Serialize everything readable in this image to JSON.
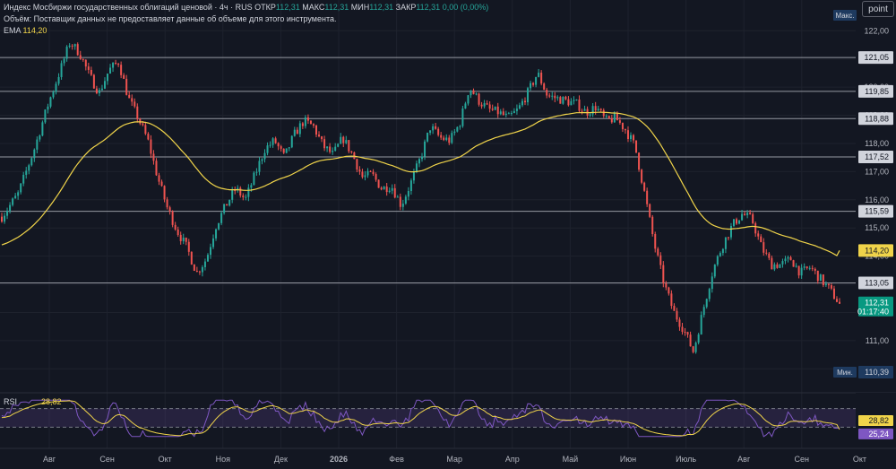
{
  "legend": {
    "title": "Индекс Мосбиржи государственных облигаций ценовой · 4ч · RUS",
    "open_label": "ОТКР",
    "open_value": "112,31",
    "high_label": "МАКС",
    "high_value": "112,31",
    "low_label": "МИН",
    "low_value": "112,31",
    "close_label": "ЗАКР",
    "close_value": "112,31",
    "change": "0,00 (0,00%)",
    "volume_note": "Объём: Поставщик данных не предоставляет данные об объеме для этого инструмента.",
    "ema_label": "EMA",
    "ema_value": "114,20"
  },
  "toolbar": {
    "point_label": "point"
  },
  "colors": {
    "up": "#26a69a",
    "down": "#ef5350",
    "ema": "#f0d44a",
    "rsi": "#7e57c2",
    "rsi_ma": "#f0d44a",
    "hline": "#9598a1",
    "bg": "#131722"
  },
  "chart_data": {
    "type": "candlestick",
    "y_axis": {
      "min": 109.5,
      "max": 122.2,
      "ticks": [
        "122,00",
        "121,00",
        "120,00",
        "119,00",
        "118,00",
        "117,00",
        "116,00",
        "115,00",
        "114,00",
        "113,00",
        "112,00",
        "111,00",
        "110,00"
      ]
    },
    "x_axis": {
      "labels": [
        "Авг",
        "Сен",
        "Окт",
        "Ноя",
        "Дек",
        "2026",
        "Фев",
        "Мар",
        "Апр",
        "Май",
        "Июн",
        "Июль",
        "Авг",
        "Сен",
        "Окт"
      ]
    },
    "close_path": [
      [
        0,
        115.4
      ],
      [
        0.5,
        116.2
      ],
      [
        1,
        117.8
      ],
      [
        1.4,
        119.3
      ],
      [
        1.8,
        120.6
      ],
      [
        2.1,
        121.6
      ],
      [
        2.4,
        121.2
      ],
      [
        2.7,
        120.4
      ],
      [
        3,
        119.8
      ],
      [
        3.3,
        120.6
      ],
      [
        3.6,
        120.9
      ],
      [
        3.9,
        119.6
      ],
      [
        4.2,
        118.9
      ],
      [
        4.5,
        118.1
      ],
      [
        4.8,
        116.8
      ],
      [
        5.1,
        115.7
      ],
      [
        5.4,
        114.9
      ],
      [
        5.7,
        114.3
      ],
      [
        6,
        113.4
      ],
      [
        6.3,
        113.9
      ],
      [
        6.6,
        115.1
      ],
      [
        6.9,
        115.8
      ],
      [
        7.2,
        116.4
      ],
      [
        7.5,
        116.0
      ],
      [
        7.8,
        116.9
      ],
      [
        8.1,
        117.8
      ],
      [
        8.4,
        118.1
      ],
      [
        8.7,
        117.5
      ],
      [
        9,
        118.3
      ],
      [
        9.3,
        118.8
      ],
      [
        9.6,
        118.6
      ],
      [
        9.9,
        117.9
      ],
      [
        10.2,
        117.6
      ],
      [
        10.5,
        118.2
      ],
      [
        10.8,
        117.6
      ],
      [
        11.1,
        116.8
      ],
      [
        11.4,
        116.9
      ],
      [
        11.7,
        116.4
      ],
      [
        12,
        116.5
      ],
      [
        12.3,
        115.8
      ],
      [
        12.6,
        116.6
      ],
      [
        12.9,
        117.5
      ],
      [
        13.2,
        118.6
      ],
      [
        13.5,
        118.2
      ],
      [
        13.8,
        118.1
      ],
      [
        14.1,
        118.7
      ],
      [
        14.4,
        120.0
      ],
      [
        14.7,
        119.5
      ],
      [
        15,
        119.2
      ],
      [
        15.3,
        119.1
      ],
      [
        15.6,
        118.9
      ],
      [
        15.9,
        119.2
      ],
      [
        16.2,
        119.8
      ],
      [
        16.5,
        120.5
      ],
      [
        16.8,
        119.7
      ],
      [
        17.1,
        119.6
      ],
      [
        17.4,
        119.5
      ],
      [
        17.7,
        119.4
      ],
      [
        18,
        119.1
      ],
      [
        18.3,
        119.3
      ],
      [
        18.6,
        118.8
      ],
      [
        18.9,
        118.9
      ],
      [
        19.2,
        118.5
      ],
      [
        19.5,
        117.9
      ],
      [
        19.8,
        116.2
      ],
      [
        20.1,
        114.4
      ],
      [
        20.4,
        113.0
      ],
      [
        20.7,
        112.0
      ],
      [
        21,
        111.4
      ],
      [
        21.3,
        110.6
      ],
      [
        21.6,
        112.1
      ],
      [
        21.9,
        113.5
      ],
      [
        22.2,
        114.4
      ],
      [
        22.5,
        115.1
      ],
      [
        22.8,
        115.5
      ],
      [
        23.1,
        115.3
      ],
      [
        23.4,
        114.3
      ],
      [
        23.7,
        113.7
      ],
      [
        24,
        113.7
      ],
      [
        24.3,
        113.9
      ],
      [
        24.6,
        113.4
      ],
      [
        24.9,
        113.6
      ],
      [
        25.2,
        113.2
      ],
      [
        25.5,
        112.8
      ],
      [
        25.8,
        112.31
      ]
    ],
    "ema": {
      "name": "EMA",
      "last": 114.2
    },
    "hlines": [
      121.05,
      119.85,
      118.88,
      117.52,
      115.59,
      113.05
    ],
    "hline_labels": [
      "121,05",
      "119,85",
      "118,88",
      "117,52",
      "115,59",
      "113,05"
    ],
    "max_label": "Макс.",
    "min_label": "Мин.",
    "min_value": "110,39",
    "ema_tag": "114,20",
    "last_price_tag": "112,31",
    "countdown": "01:17:40",
    "rsi": {
      "name": "RSI",
      "value": "28,82",
      "ma_value": "25,24",
      "upper": 70,
      "lower": 30
    }
  }
}
